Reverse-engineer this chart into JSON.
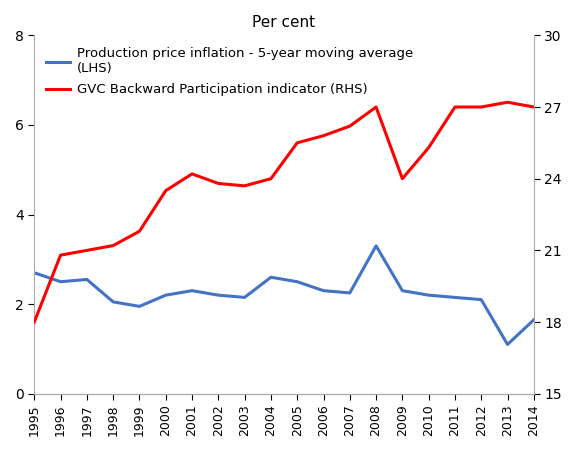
{
  "title": "Per cent",
  "years": [
    1995,
    1996,
    1997,
    1998,
    1999,
    2000,
    2001,
    2002,
    2003,
    2004,
    2005,
    2006,
    2007,
    2008,
    2009,
    2010,
    2011,
    2012,
    2013,
    2014
  ],
  "blue_lhs": [
    2.7,
    2.5,
    2.55,
    2.05,
    1.95,
    2.2,
    2.3,
    2.2,
    2.15,
    2.6,
    2.5,
    2.3,
    2.25,
    3.3,
    2.3,
    2.2,
    2.15,
    2.1,
    1.1,
    1.65
  ],
  "red_rhs": [
    18.0,
    20.8,
    21.0,
    21.2,
    21.8,
    23.5,
    24.2,
    23.8,
    23.7,
    24.0,
    25.5,
    25.8,
    26.2,
    27.0,
    24.0,
    25.3,
    27.0,
    27.0,
    27.2,
    27.0
  ],
  "blue_color": "#4472C4",
  "red_color": "#FF0000",
  "lhs_ylim": [
    0,
    8
  ],
  "rhs_ylim": [
    15,
    30
  ],
  "lhs_yticks": [
    0,
    2,
    4,
    6,
    8
  ],
  "rhs_yticks": [
    15,
    18,
    21,
    24,
    27,
    30
  ],
  "blue_label_line1": "Production price inflation - 5-year moving average",
  "blue_label_line2": "(LHS)",
  "red_label": "GVC Backward Participation indicator (RHS)",
  "legend_fontsize": 9.5,
  "title_fontsize": 11,
  "linewidth": 2.2
}
